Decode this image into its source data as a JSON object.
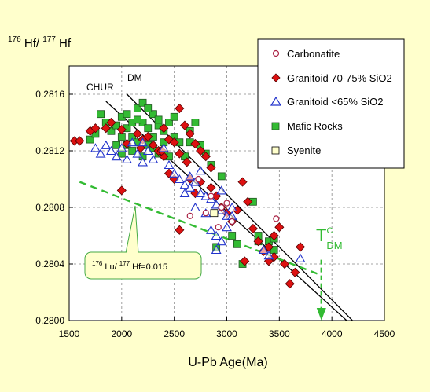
{
  "colors": {
    "background": "#ffffcc",
    "plot_bg": "#ffffff",
    "granitoid_high": "#dd1111",
    "granitoid_low": "#2233cc",
    "mafic": "#33bb33",
    "carbonatite": "#aa2244",
    "syenite": "#ffffcc",
    "trend": "#33bb33"
  },
  "chart_data": {
    "type": "scatter",
    "title": "",
    "ylabel_parts": [
      "176",
      " Hf/ ",
      "177",
      " Hf"
    ],
    "xlabel": "U-Pb Age(Ma)",
    "xlim": [
      1500,
      4500
    ],
    "ylim": [
      0.28,
      0.2818
    ],
    "xticks": [
      "1500",
      "2000",
      "2500",
      "3000",
      "3500",
      "4000",
      "4500"
    ],
    "yticks": [
      "0.2800",
      "0.2804",
      "0.2808",
      "0.2812",
      "0.2816"
    ],
    "grid": true,
    "legend_position": "top-right",
    "lines": [
      {
        "name": "CHUR",
        "x": [
          1850,
          4200
        ],
        "y": [
          0.28155,
          0.27996
        ]
      },
      {
        "name": "DM",
        "x": [
          2050,
          4250
        ],
        "y": [
          0.2816,
          0.27996
        ]
      }
    ],
    "line_labels": [
      "CHUR",
      "DM"
    ],
    "trend": {
      "x": [
        1600,
        3900
      ],
      "y": [
        0.28098,
        0.28032
      ]
    },
    "trend_label_parts": [
      "176",
      " Lu/ ",
      "177",
      " Hf=0.015"
    ],
    "tdm_label": {
      "main": "T",
      "sup": "C",
      "sub": "DM"
    },
    "tdm_arrow": {
      "x": 3900,
      "y_from": 0.28043,
      "y_to": 0.28
    },
    "series": [
      {
        "name": "Carbonatite",
        "marker": "circle",
        "points": [
          [
            2650,
            0.28074
          ],
          [
            2800,
            0.28076
          ],
          [
            2850,
            0.28088
          ],
          [
            2950,
            0.2808
          ],
          [
            3050,
            0.2807
          ],
          [
            2920,
            0.28066
          ],
          [
            3470,
            0.28072
          ],
          [
            2730,
            0.281
          ],
          [
            3000,
            0.28083
          ]
        ]
      },
      {
        "name": "Granitoid 70-75% SiO2",
        "marker": "diamond",
        "points": [
          [
            1550,
            0.28127
          ],
          [
            1600,
            0.28127
          ],
          [
            1700,
            0.28134
          ],
          [
            1750,
            0.28136
          ],
          [
            1850,
            0.28136
          ],
          [
            1900,
            0.2814
          ],
          [
            2000,
            0.28092
          ],
          [
            2000,
            0.28135
          ],
          [
            2050,
            0.28125
          ],
          [
            2150,
            0.28132
          ],
          [
            2200,
            0.28128
          ],
          [
            2250,
            0.2813
          ],
          [
            2300,
            0.28124
          ],
          [
            2350,
            0.2812
          ],
          [
            2400,
            0.28136
          ],
          [
            2450,
            0.28128
          ],
          [
            2500,
            0.28126
          ],
          [
            2550,
            0.2815
          ],
          [
            2550,
            0.28118
          ],
          [
            2600,
            0.28138
          ],
          [
            2650,
            0.28132
          ],
          [
            2700,
            0.28125
          ],
          [
            2750,
            0.2812
          ],
          [
            2800,
            0.28116
          ],
          [
            2400,
            0.28116
          ],
          [
            2450,
            0.28104
          ],
          [
            2500,
            0.281
          ],
          [
            2550,
            0.28064
          ],
          [
            2650,
            0.281
          ],
          [
            2700,
            0.2809
          ],
          [
            2750,
            0.28098
          ],
          [
            2850,
            0.28094
          ],
          [
            2900,
            0.28088
          ],
          [
            2950,
            0.2808
          ],
          [
            3000,
            0.28076
          ],
          [
            3050,
            0.2807
          ],
          [
            3100,
            0.28078
          ],
          [
            3150,
            0.28098
          ],
          [
            3200,
            0.28084
          ],
          [
            3250,
            0.28065
          ],
          [
            3300,
            0.28056
          ],
          [
            3350,
            0.28049
          ],
          [
            3400,
            0.28052
          ],
          [
            3450,
            0.28045
          ],
          [
            3500,
            0.28066
          ],
          [
            3550,
            0.2804
          ],
          [
            3600,
            0.28026
          ],
          [
            3650,
            0.28034
          ],
          [
            3700,
            0.28052
          ],
          [
            3170,
            0.28042
          ],
          [
            3450,
            0.2806
          ],
          [
            3400,
            0.28042
          ],
          [
            2380,
            0.2812
          ],
          [
            2180,
            0.28122
          ],
          [
            2620,
            0.28112
          ],
          [
            2850,
            0.28108
          ]
        ]
      },
      {
        "name": "Granitoid <65% SiO2",
        "marker": "triangle",
        "points": [
          [
            1750,
            0.28122
          ],
          [
            1800,
            0.28118
          ],
          [
            1850,
            0.28124
          ],
          [
            1900,
            0.2812
          ],
          [
            1950,
            0.28116
          ],
          [
            2000,
            0.28122
          ],
          [
            2050,
            0.28114
          ],
          [
            2100,
            0.28126
          ],
          [
            2150,
            0.28118
          ],
          [
            2200,
            0.28126
          ],
          [
            2250,
            0.2812
          ],
          [
            2300,
            0.28114
          ],
          [
            2400,
            0.28122
          ],
          [
            2450,
            0.2811
          ],
          [
            2500,
            0.28104
          ],
          [
            2550,
            0.281
          ],
          [
            2600,
            0.28096
          ],
          [
            2650,
            0.28102
          ],
          [
            2700,
            0.28098
          ],
          [
            2750,
            0.2809
          ],
          [
            2800,
            0.28088
          ],
          [
            2850,
            0.28086
          ],
          [
            2900,
            0.28082
          ],
          [
            2950,
            0.28078
          ],
          [
            3000,
            0.28074
          ],
          [
            2850,
            0.28064
          ],
          [
            2900,
            0.2806
          ],
          [
            2950,
            0.28056
          ],
          [
            3000,
            0.28066
          ],
          [
            3050,
            0.28074
          ],
          [
            2700,
            0.2808
          ],
          [
            2800,
            0.28076
          ],
          [
            2900,
            0.2805
          ],
          [
            3350,
            0.2805
          ],
          [
            3400,
            0.28046
          ],
          [
            3700,
            0.28044
          ],
          [
            2600,
            0.2809
          ],
          [
            2750,
            0.28106
          ],
          [
            2650,
            0.28094
          ],
          [
            2950,
            0.28092
          ],
          [
            3050,
            0.2808
          ],
          [
            2200,
            0.28112
          ]
        ]
      },
      {
        "name": "Mafic Rocks",
        "marker": "square",
        "points": [
          [
            1700,
            0.28128
          ],
          [
            1750,
            0.28132
          ],
          [
            1800,
            0.28146
          ],
          [
            1850,
            0.2814
          ],
          [
            1900,
            0.28134
          ],
          [
            1950,
            0.28138
          ],
          [
            2000,
            0.2813
          ],
          [
            2000,
            0.28144
          ],
          [
            2050,
            0.28136
          ],
          [
            2050,
            0.28124
          ],
          [
            2100,
            0.2814
          ],
          [
            2100,
            0.2813
          ],
          [
            2150,
            0.2815
          ],
          [
            2150,
            0.28126
          ],
          [
            2200,
            0.28154
          ],
          [
            2200,
            0.2814
          ],
          [
            2250,
            0.28136
          ],
          [
            2250,
            0.28124
          ],
          [
            2300,
            0.28146
          ],
          [
            2300,
            0.2813
          ],
          [
            2350,
            0.28138
          ],
          [
            2350,
            0.28118
          ],
          [
            2400,
            0.28134
          ],
          [
            2400,
            0.28126
          ],
          [
            2450,
            0.2814
          ],
          [
            2450,
            0.28116
          ],
          [
            2500,
            0.2813
          ],
          [
            2550,
            0.28126
          ],
          [
            2600,
            0.28116
          ],
          [
            2650,
            0.28134
          ],
          [
            2700,
            0.2814
          ],
          [
            2750,
            0.28124
          ],
          [
            2800,
            0.28118
          ],
          [
            2850,
            0.2811
          ],
          [
            1950,
            0.28124
          ],
          [
            2050,
            0.28146
          ],
          [
            2000,
            0.28118
          ],
          [
            2100,
            0.2812
          ],
          [
            2150,
            0.28142
          ],
          [
            2250,
            0.2815
          ],
          [
            2300,
            0.28122
          ],
          [
            2350,
            0.28142
          ],
          [
            2500,
            0.28144
          ],
          [
            2950,
            0.28102
          ],
          [
            3050,
            0.2806
          ],
          [
            3100,
            0.28054
          ],
          [
            3150,
            0.2804
          ],
          [
            3250,
            0.28084
          ],
          [
            3300,
            0.28056
          ],
          [
            3400,
            0.28056
          ],
          [
            3450,
            0.2805
          ],
          [
            3300,
            0.2806
          ],
          [
            2900,
            0.28052
          ],
          [
            3450,
            0.28058
          ],
          [
            2650,
            0.28126
          ],
          [
            2200,
            0.28116
          ],
          [
            2400,
            0.28118
          ]
        ]
      },
      {
        "name": "Syenite",
        "marker": "square_open",
        "points": [
          [
            2880,
            0.28076
          ]
        ]
      }
    ]
  }
}
